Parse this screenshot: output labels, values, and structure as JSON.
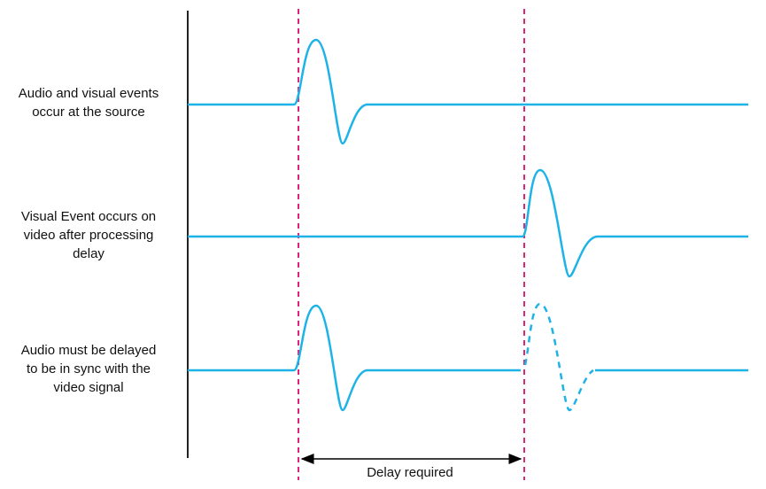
{
  "rows": [
    {
      "label_lines": [
        "Audio and visual events",
        "occur at the source"
      ]
    },
    {
      "label_lines": [
        "Visual Event occurs on",
        "video after processing",
        "delay"
      ]
    },
    {
      "label_lines": [
        "Audio must be delayed",
        "to be in sync with the",
        "video signal"
      ]
    }
  ],
  "delay_label": "Delay required"
}
